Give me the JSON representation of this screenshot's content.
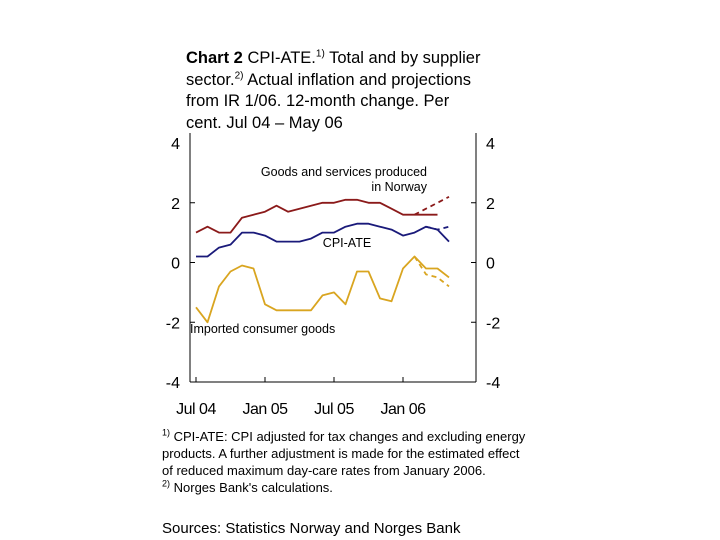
{
  "title": {
    "chart_no": "Chart 2",
    "part1": " CPI-ATE.",
    "sup1": "1)",
    "part2": " Total and by supplier sector.",
    "sup2": "2)",
    "part3": " Actual inflation and projections from IR 1/06. 12-month change. Per cent. Jul 04 – May 06"
  },
  "footnotes": {
    "n1_mark": "1)",
    "n1_text": " CPI-ATE: CPI adjusted for tax changes and excluding energy products. A further adjustment is made for the estimated effect of reduced maximum day-care rates from January 2006.",
    "n2_mark": "2)",
    "n2_text": " Norges Bank's calculations."
  },
  "sources": "Sources: Statistics Norway and Norges Bank",
  "chart_data": {
    "type": "line",
    "x": [
      "Jul 04",
      "Aug 04",
      "Sep 04",
      "Oct 04",
      "Nov 04",
      "Dec 04",
      "Jan 05",
      "Feb 05",
      "Mar 05",
      "Apr 05",
      "May 05",
      "Jun 05",
      "Jul 05",
      "Aug 05",
      "Sep 05",
      "Oct 05",
      "Nov 05",
      "Dec 05",
      "Jan 06",
      "Feb 06",
      "Mar 06",
      "Apr 06",
      "May 06"
    ],
    "x_ticks": [
      "Jul 04",
      "Jan 05",
      "Jul 05",
      "Jan 06"
    ],
    "y_ticks": [
      4,
      2,
      0,
      -2,
      -4
    ],
    "ylim": [
      -4,
      4
    ],
    "series": [
      {
        "name": "Goods and services produced in Norway",
        "color": "#8b1a1a",
        "values": [
          1.0,
          1.2,
          1.0,
          1.0,
          1.5,
          1.6,
          1.7,
          1.9,
          1.7,
          1.8,
          1.9,
          2.0,
          2.0,
          2.1,
          2.1,
          2.0,
          2.0,
          1.8,
          1.6,
          1.6,
          1.6,
          1.6,
          null
        ],
        "projection": [
          null,
          null,
          null,
          null,
          null,
          null,
          null,
          null,
          null,
          null,
          null,
          null,
          null,
          null,
          null,
          null,
          null,
          null,
          null,
          1.6,
          1.8,
          2.0,
          2.2
        ]
      },
      {
        "name": "CPI-ATE",
        "color": "#1a1a7a",
        "values": [
          0.2,
          0.2,
          0.5,
          0.6,
          1.0,
          1.0,
          0.9,
          0.7,
          0.7,
          0.7,
          0.8,
          1.0,
          1.0,
          1.2,
          1.3,
          1.3,
          1.2,
          1.1,
          0.9,
          1.0,
          1.2,
          1.1,
          0.7
        ],
        "projection": [
          null,
          null,
          null,
          null,
          null,
          null,
          null,
          null,
          null,
          null,
          null,
          null,
          null,
          null,
          null,
          null,
          null,
          null,
          null,
          null,
          1.2,
          1.1,
          1.2
        ]
      },
      {
        "name": "Imported consumer goods",
        "color": "#d9a520",
        "values": [
          -1.5,
          -2.0,
          -0.8,
          -0.3,
          -0.1,
          -0.2,
          -1.4,
          -1.6,
          -1.6,
          -1.6,
          -1.6,
          -1.1,
          -1.0,
          -1.4,
          -0.3,
          -0.3,
          -1.2,
          -1.3,
          -0.2,
          0.2,
          -0.2,
          -0.2,
          -0.5
        ],
        "projection": [
          null,
          null,
          null,
          null,
          null,
          null,
          null,
          null,
          null,
          null,
          null,
          null,
          null,
          null,
          null,
          null,
          null,
          null,
          null,
          0.2,
          -0.4,
          -0.5,
          -0.8
        ]
      }
    ]
  }
}
